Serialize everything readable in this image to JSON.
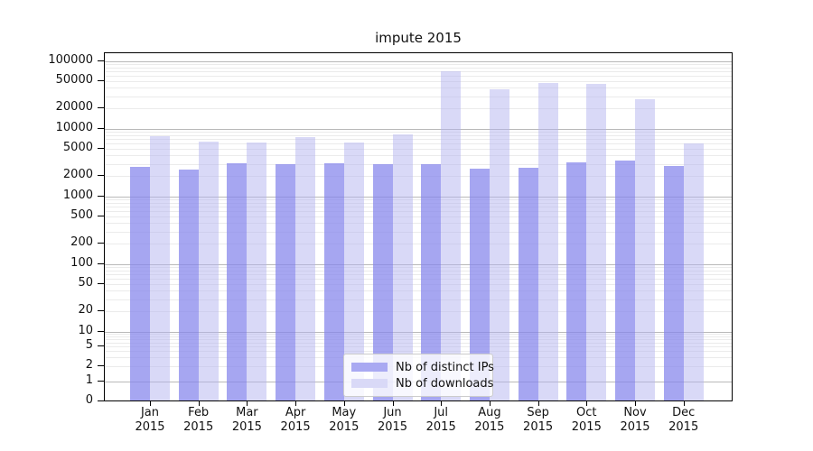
{
  "chart_data": {
    "type": "bar",
    "title": "impute 2015",
    "xlabel": "",
    "ylabel": "",
    "yscale": "symlog",
    "grid": true,
    "legend_position": "lower center",
    "ylim": [
      0,
      130000
    ],
    "yticks": [
      0,
      1,
      2,
      5,
      10,
      20,
      50,
      100,
      200,
      500,
      1000,
      2000,
      5000,
      10000,
      20000,
      50000,
      100000
    ],
    "categories": [
      "Jan 2015",
      "Feb 2015",
      "Mar 2015",
      "Apr 2015",
      "May 2015",
      "Jun 2015",
      "Jul 2015",
      "Aug 2015",
      "Sep 2015",
      "Oct 2015",
      "Nov 2015",
      "Dec 2015"
    ],
    "series": [
      {
        "name": "Nb of distinct IPs",
        "color": "#a9a9f2",
        "fill": "rgba(132,132,236,0.72)",
        "values": [
          2650,
          2450,
          3000,
          2900,
          3000,
          2950,
          2950,
          2550,
          2600,
          3100,
          3300,
          2800
        ]
      },
      {
        "name": "Nb of downloads",
        "color": "#d9d9f7",
        "fill": "rgba(180,180,240,0.5)",
        "values": [
          7500,
          6300,
          6050,
          7450,
          6200,
          8200,
          70000,
          38000,
          46000,
          45000,
          27000,
          6000
        ]
      }
    ]
  }
}
